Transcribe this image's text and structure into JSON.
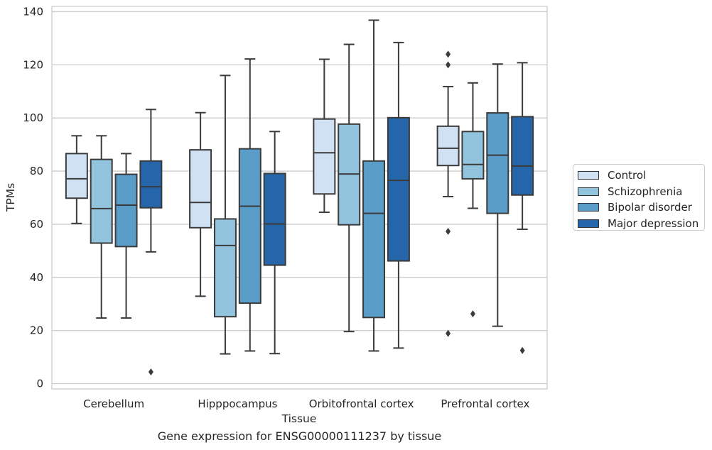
{
  "chart_data": {
    "type": "box",
    "caption": "Gene expression for ENSG00000111237 by tissue",
    "xlabel": "Tissue",
    "ylabel": "TPMs",
    "ylim": [
      -2,
      142
    ],
    "yticks": [
      0,
      20,
      40,
      60,
      80,
      100,
      120,
      140
    ],
    "grid": true,
    "legend_position": "right",
    "categories": [
      "Cerebellum",
      "Hipppocampus",
      "Orbitofrontal cortex",
      "Prefrontal cortex"
    ],
    "series": [
      {
        "name": "Control",
        "color": "#cfe1f2",
        "boxes": [
          {
            "whisker_low": 60.3,
            "q1": 69.8,
            "median": 77.1,
            "q3": 86.6,
            "whisker_high": 93.3,
            "outliers": []
          },
          {
            "whisker_low": 32.9,
            "q1": 58.7,
            "median": 68.2,
            "q3": 88.0,
            "whisker_high": 102.0,
            "outliers": []
          },
          {
            "whisker_low": 64.5,
            "q1": 71.4,
            "median": 86.9,
            "q3": 99.6,
            "whisker_high": 122.1,
            "outliers": []
          },
          {
            "whisker_low": 70.4,
            "q1": 82.1,
            "median": 88.6,
            "q3": 96.9,
            "whisker_high": 111.8,
            "outliers": [
              124.0,
              120.0,
              57.3,
              18.9
            ]
          }
        ]
      },
      {
        "name": "Schizophrenia",
        "color": "#93c4de",
        "boxes": [
          {
            "whisker_low": 24.7,
            "q1": 52.9,
            "median": 65.9,
            "q3": 84.4,
            "whisker_high": 93.3,
            "outliers": []
          },
          {
            "whisker_low": 11.2,
            "q1": 25.2,
            "median": 52.0,
            "q3": 62.0,
            "whisker_high": 116.0,
            "outliers": []
          },
          {
            "whisker_low": 19.6,
            "q1": 59.8,
            "median": 78.9,
            "q3": 97.7,
            "whisker_high": 127.7,
            "outliers": []
          },
          {
            "whisker_low": 66.0,
            "q1": 77.1,
            "median": 82.5,
            "q3": 94.9,
            "whisker_high": 113.2,
            "outliers": [
              26.3
            ]
          }
        ]
      },
      {
        "name": "Bipolar disorder",
        "color": "#5a9dc9",
        "boxes": [
          {
            "whisker_low": 24.7,
            "q1": 51.6,
            "median": 67.2,
            "q3": 78.8,
            "whisker_high": 86.6,
            "outliers": []
          },
          {
            "whisker_low": 12.3,
            "q1": 30.3,
            "median": 66.8,
            "q3": 88.4,
            "whisker_high": 122.2,
            "outliers": []
          },
          {
            "whisker_low": 12.3,
            "q1": 24.9,
            "median": 64.1,
            "q3": 83.8,
            "whisker_high": 136.8,
            "outliers": []
          },
          {
            "whisker_low": 21.6,
            "q1": 64.1,
            "median": 86.0,
            "q3": 101.9,
            "whisker_high": 120.3,
            "outliers": []
          }
        ]
      },
      {
        "name": "Major depression",
        "color": "#2566aa",
        "boxes": [
          {
            "whisker_low": 49.6,
            "q1": 66.2,
            "median": 74.1,
            "q3": 83.8,
            "whisker_high": 103.2,
            "outliers": [
              4.4
            ]
          },
          {
            "whisker_low": 11.3,
            "q1": 44.6,
            "median": 60.1,
            "q3": 79.1,
            "whisker_high": 94.9,
            "outliers": []
          },
          {
            "whisker_low": 13.4,
            "q1": 46.2,
            "median": 76.5,
            "q3": 100.1,
            "whisker_high": 128.4,
            "outliers": []
          },
          {
            "whisker_low": 58.1,
            "q1": 71.0,
            "median": 81.9,
            "q3": 100.5,
            "whisker_high": 120.8,
            "outliers": [
              12.5
            ]
          }
        ]
      }
    ]
  }
}
